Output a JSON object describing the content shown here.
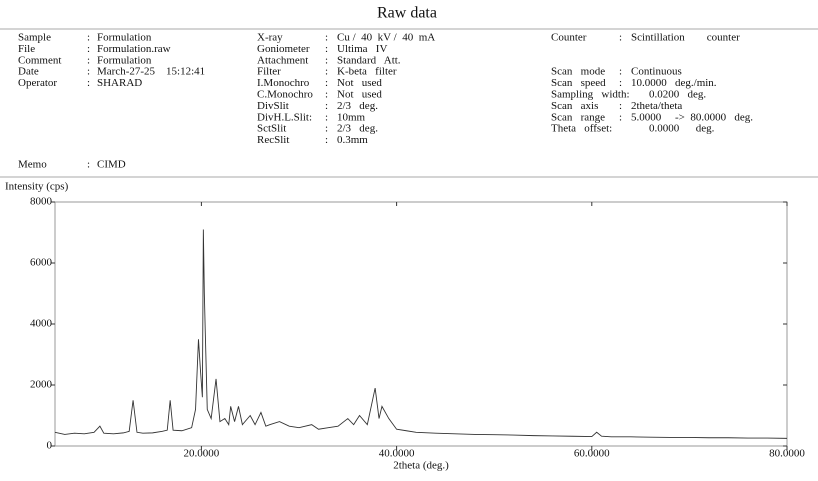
{
  "title": "Raw data",
  "separator": ":",
  "info": {
    "left": [
      {
        "label": "Sample",
        "value": "Formulation"
      },
      {
        "label": "File",
        "value": "Formulation.raw"
      },
      {
        "label": "Comment",
        "value": "Formulation"
      },
      {
        "label": "Date",
        "value": "March-27-25    15:12:41"
      },
      {
        "label": "Operator",
        "value": "SHARAD"
      }
    ],
    "middle": [
      {
        "label": "X-ray",
        "value": "Cu /  40  kV /  40  mA"
      },
      {
        "label": "Goniometer",
        "value": "Ultima   IV"
      },
      {
        "label": "Attachment",
        "value": "Standard   Att."
      },
      {
        "label": "Filter",
        "value": "K-beta   filter"
      },
      {
        "label": "I.Monochro",
        "value": "Not   used"
      },
      {
        "label": "C.Monochro",
        "value": "Not   used"
      },
      {
        "label": "DivSlit",
        "value": "2/3   deg."
      },
      {
        "label": "DivH.L.Slit:",
        "value": "10mm"
      },
      {
        "label": "SctSlit",
        "value": "2/3   deg."
      },
      {
        "label": "RecSlit",
        "value": "0.3mm"
      }
    ],
    "right": [
      {
        "label": "Counter",
        "sep": ":",
        "value": "Scintillation        counter"
      },
      {
        "label": "Scan   mode",
        "sep": ":",
        "value": "Continuous"
      },
      {
        "label": "Scan   speed",
        "sep": ":",
        "value": "10.0000   deg./min."
      },
      {
        "label": "Sampling   width:",
        "value": "0.0200   deg."
      },
      {
        "label": "Scan   axis",
        "sep": ":",
        "value": "2theta/theta"
      },
      {
        "label": "Scan   range",
        "sep": ":",
        "value": "5.0000     ->  80.0000   deg."
      },
      {
        "label": "Theta   offset:",
        "value": "0.0000      deg."
      }
    ]
  },
  "memo": {
    "label": "Memo",
    "value": "CIMD"
  },
  "chart_data": {
    "type": "line",
    "y_label": "Intensity (cps)",
    "x_label": "2theta (deg.)",
    "color": "#333333",
    "xlim": [
      5,
      80
    ],
    "ylim": [
      0,
      8000
    ],
    "xticks": [
      {
        "value": 20,
        "label": "20.0000"
      },
      {
        "value": 40,
        "label": "40.0000"
      },
      {
        "value": 60,
        "label": "60.0000"
      },
      {
        "value": 80,
        "label": "80.0000"
      }
    ],
    "yticks": [
      0,
      2000,
      4000,
      6000,
      8000
    ],
    "x": [
      5,
      6,
      7,
      8,
      9,
      9.6,
      10,
      11,
      12,
      12.6,
      13,
      13.4,
      14,
      15,
      16,
      16.5,
      16.8,
      17.1,
      18,
      19,
      19.4,
      19.7,
      19.9,
      20.1,
      20.2,
      20.3,
      20.4,
      20.6,
      21,
      21.5,
      21.9,
      22.4,
      22.8,
      23,
      23.4,
      23.8,
      24.2,
      25,
      25.5,
      26.1,
      26.6,
      27,
      28,
      29,
      30,
      31.3,
      32,
      33,
      34,
      35,
      35.6,
      36.2,
      37,
      37.8,
      38.2,
      38.5,
      39.2,
      40,
      41,
      42,
      44,
      46,
      48,
      50,
      52,
      54,
      56,
      58,
      60,
      60.5,
      61,
      62,
      64,
      66,
      68,
      70,
      72,
      74,
      76,
      78,
      80
    ],
    "values": [
      450,
      380,
      420,
      400,
      450,
      650,
      420,
      400,
      430,
      480,
      1500,
      450,
      420,
      430,
      480,
      520,
      1500,
      520,
      500,
      600,
      1200,
      3500,
      2500,
      1600,
      7100,
      5000,
      3700,
      1200,
      900,
      2200,
      800,
      900,
      700,
      1300,
      800,
      1300,
      700,
      1000,
      700,
      1100,
      650,
      700,
      800,
      650,
      600,
      700,
      550,
      600,
      650,
      900,
      700,
      1000,
      700,
      1900,
      900,
      1300,
      900,
      550,
      500,
      450,
      420,
      400,
      380,
      370,
      360,
      340,
      330,
      320,
      310,
      450,
      320,
      300,
      300,
      290,
      280,
      280,
      270,
      270,
      260,
      260,
      250
    ]
  }
}
